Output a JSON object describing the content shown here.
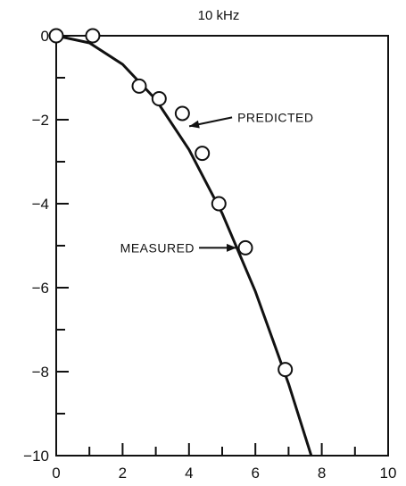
{
  "chart_data": {
    "type": "line",
    "title": "10 kHz",
    "xlabel": "",
    "ylabel": "",
    "xlim": [
      0,
      10
    ],
    "ylim": [
      -10,
      0
    ],
    "x_ticks": [
      0,
      2,
      4,
      6,
      8,
      10
    ],
    "y_ticks": [
      0,
      -2,
      -4,
      -6,
      -8,
      -10
    ],
    "x_minor_step": 1,
    "y_minor_step": 1,
    "grid": false,
    "colors": {
      "ink": "#111111",
      "background": "#ffffff"
    },
    "series": [
      {
        "style": "solid-line",
        "x": [
          0,
          1,
          2,
          3,
          4,
          5,
          6,
          7,
          7.7
        ],
        "y": [
          0,
          -0.17,
          -0.68,
          -1.52,
          -2.71,
          -4.23,
          -6.09,
          -8.29,
          -10.04
        ]
      },
      {
        "style": "open-circle-markers",
        "x": [
          0,
          1.1,
          2.5,
          3.1,
          3.8,
          4.4,
          4.9,
          5.7,
          6.9
        ],
        "y": [
          0,
          0,
          -1.2,
          -1.5,
          -1.85,
          -2.8,
          -4.0,
          -5.05,
          -7.95
        ]
      }
    ],
    "annotations": [
      {
        "text": "PREDICTED",
        "target_series": 0,
        "target_x": 3.9,
        "target_y": -2.2
      },
      {
        "text": "MEASURED",
        "target_series": 1,
        "target_x": 5.7,
        "target_y": -5.05
      }
    ]
  }
}
